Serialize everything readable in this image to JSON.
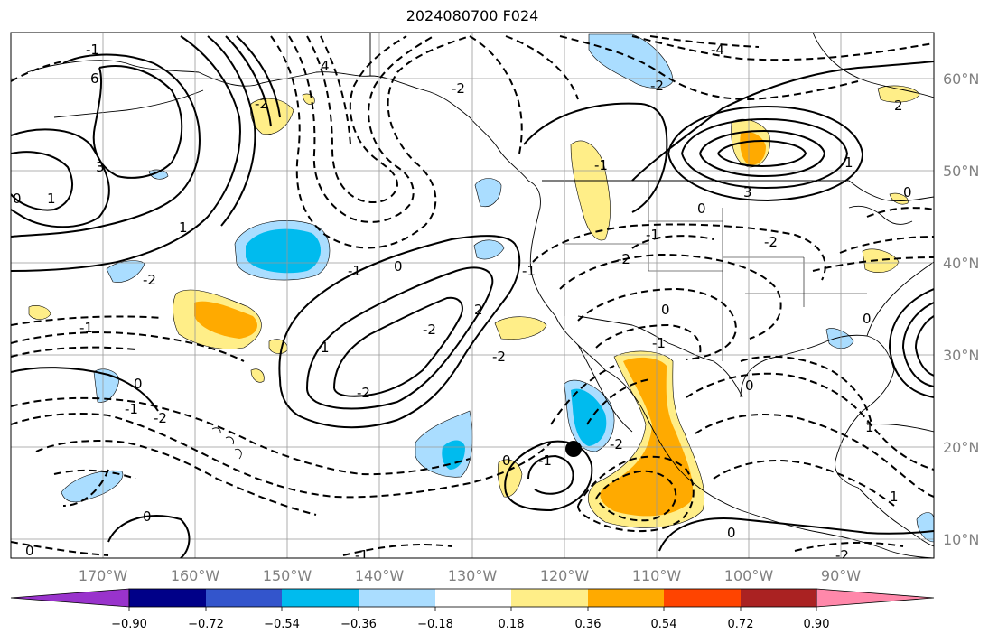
{
  "title": "2024080700 F024",
  "map": {
    "lat_labels": [
      "60°N",
      "50°N",
      "40°N",
      "30°N",
      "20°N",
      "10°N"
    ],
    "lon_labels": [
      "170°W",
      "160°W",
      "150°W",
      "140°W",
      "130°W",
      "120°W",
      "110°W",
      "100°W",
      "90°W"
    ],
    "extent": {
      "lon_min": -180,
      "lon_max": -80,
      "lat_min": 8,
      "lat_max": 65
    },
    "marker": {
      "lon": -119,
      "lat": 20,
      "color": "#000000"
    },
    "contour_labels": [
      "-4",
      "-2",
      "6",
      "4",
      "3",
      "0",
      "1",
      "-2",
      "1",
      "-1",
      "0",
      "-2",
      "-1",
      "-2",
      "-1",
      "0",
      "-2",
      "1",
      "2",
      "0",
      "1",
      "3",
      "0",
      "-1",
      "-2",
      "-2",
      "0",
      "2",
      "-1",
      "-2",
      "0",
      "-1",
      "-2",
      "-1",
      "0",
      "1",
      "0",
      "1",
      "-2",
      "-1",
      "0",
      "0",
      "-1",
      "-2",
      "-1",
      "-2",
      "0"
    ]
  },
  "colorbar": {
    "tick_labels": [
      "−0.90",
      "−0.72",
      "−0.54",
      "−0.36",
      "−0.18",
      "0.18",
      "0.36",
      "0.54",
      "0.72",
      "0.90"
    ],
    "colors": [
      "#9933cc",
      "#000088",
      "#3355cc",
      "#00bbee",
      "#aaddff",
      "#ffffff",
      "#ffee88",
      "#ffaa00",
      "#ff4400",
      "#aa2222",
      "#ff88aa",
      "#ff88aa"
    ]
  }
}
